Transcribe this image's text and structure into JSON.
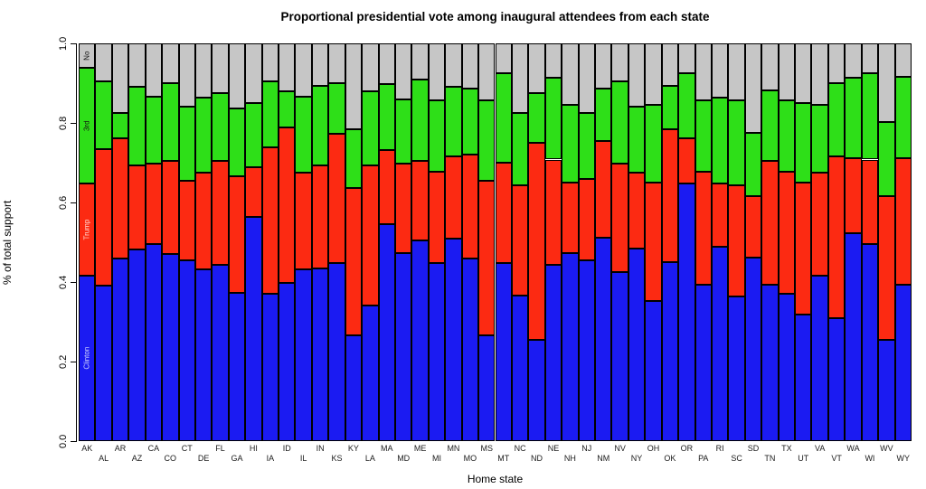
{
  "title": "Proportional presidential vote among inaugural attendees from each state",
  "axes": {
    "x_label": "Home state",
    "y_label": "% of total support",
    "y_tick_labels": [
      "0.0",
      "0.2",
      "0.4",
      "0.6",
      "0.8",
      "1.0"
    ],
    "y_tick_values": [
      0,
      0.2,
      0.4,
      0.6,
      0.8,
      1.0
    ]
  },
  "chart_data": {
    "type": "bar",
    "stacked": true,
    "title": "Proportional presidential vote among inaugural attendees from each state",
    "xlabel": "Home state",
    "ylabel": "% of total support",
    "ylim": [
      0,
      1
    ],
    "grid": false,
    "legend_position": "in-first-bar",
    "categories": [
      "AK",
      "AL",
      "AR",
      "AZ",
      "CA",
      "CO",
      "CT",
      "DE",
      "FL",
      "GA",
      "HI",
      "IA",
      "ID",
      "IL",
      "IN",
      "KS",
      "KY",
      "LA",
      "MA",
      "MD",
      "ME",
      "MI",
      "MN",
      "MO",
      "MS",
      "MT",
      "NC",
      "ND",
      "NE",
      "NH",
      "NJ",
      "NM",
      "NV",
      "NY",
      "OH",
      "OK",
      "OR",
      "PA",
      "RI",
      "SC",
      "SD",
      "TN",
      "TX",
      "UT",
      "VA",
      "VT",
      "WA",
      "WI",
      "WV",
      "WY"
    ],
    "series": [
      {
        "name": "Clinton",
        "color": "#1b1bf2",
        "values": [
          0.415,
          0.39,
          0.458,
          0.481,
          0.496,
          0.47,
          0.455,
          0.432,
          0.443,
          0.372,
          0.564,
          0.371,
          0.398,
          0.432,
          0.435,
          0.447,
          0.265,
          0.341,
          0.545,
          0.473,
          0.504,
          0.447,
          0.508,
          0.458,
          0.265,
          0.447,
          0.367,
          0.254,
          0.443,
          0.473,
          0.455,
          0.511,
          0.424,
          0.485,
          0.352,
          0.451,
          0.648,
          0.394,
          0.489,
          0.364,
          0.462,
          0.394,
          0.371,
          0.318,
          0.417,
          0.31,
          0.523,
          0.496,
          0.254,
          0.394
        ]
      },
      {
        "name": "Trump",
        "color": "#fc2a12",
        "values": [
          0.233,
          0.345,
          0.303,
          0.212,
          0.201,
          0.235,
          0.2,
          0.242,
          0.262,
          0.295,
          0.125,
          0.368,
          0.39,
          0.242,
          0.258,
          0.326,
          0.371,
          0.352,
          0.186,
          0.224,
          0.201,
          0.231,
          0.208,
          0.262,
          0.39,
          0.254,
          0.277,
          0.496,
          0.265,
          0.178,
          0.204,
          0.243,
          0.273,
          0.189,
          0.299,
          0.333,
          0.113,
          0.284,
          0.159,
          0.28,
          0.155,
          0.311,
          0.307,
          0.333,
          0.257,
          0.406,
          0.189,
          0.212,
          0.363,
          0.318
        ]
      },
      {
        "name": "3rd",
        "color": "#2edf18",
        "values": [
          0.291,
          0.17,
          0.065,
          0.197,
          0.17,
          0.196,
          0.186,
          0.19,
          0.17,
          0.17,
          0.16,
          0.166,
          0.091,
          0.193,
          0.201,
          0.128,
          0.148,
          0.186,
          0.167,
          0.163,
          0.204,
          0.178,
          0.174,
          0.166,
          0.201,
          0.223,
          0.182,
          0.125,
          0.205,
          0.194,
          0.167,
          0.132,
          0.208,
          0.167,
          0.194,
          0.11,
          0.163,
          0.178,
          0.216,
          0.212,
          0.159,
          0.177,
          0.178,
          0.198,
          0.171,
          0.185,
          0.201,
          0.216,
          0.186,
          0.205
        ]
      },
      {
        "name": "No",
        "color": "#c6c6c6",
        "values": [
          0.061,
          0.095,
          0.174,
          0.11,
          0.133,
          0.099,
          0.159,
          0.136,
          0.125,
          0.163,
          0.151,
          0.095,
          0.121,
          0.133,
          0.106,
          0.099,
          0.216,
          0.121,
          0.102,
          0.14,
          0.091,
          0.144,
          0.11,
          0.114,
          0.144,
          0.076,
          0.174,
          0.125,
          0.087,
          0.155,
          0.174,
          0.114,
          0.095,
          0.159,
          0.155,
          0.106,
          0.076,
          0.144,
          0.136,
          0.144,
          0.224,
          0.118,
          0.144,
          0.151,
          0.155,
          0.099,
          0.087,
          0.076,
          0.197,
          0.083
        ]
      }
    ],
    "first_bar_segment_labels": [
      {
        "segment": "Clinton",
        "text": "Clinton",
        "color": "#d4d9ff"
      },
      {
        "segment": "Trump",
        "text": "Trump",
        "color": "#ffd9d2"
      },
      {
        "segment": "3rd",
        "text": "3rd",
        "color": "#111111"
      },
      {
        "segment": "No",
        "text": "No",
        "color": "#111111"
      }
    ]
  }
}
